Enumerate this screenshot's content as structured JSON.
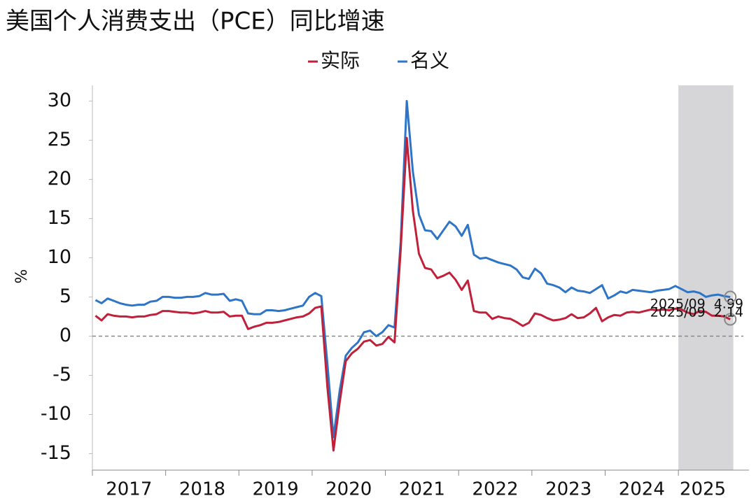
{
  "chart_data": {
    "type": "line",
    "title": "美国个人消费支出（PCE）同比增速",
    "y_label": "%",
    "categories": [
      null,
      null,
      null,
      null,
      null,
      null,
      "2017",
      null,
      null,
      null,
      null,
      null,
      null,
      null,
      null,
      null,
      null,
      null,
      "2018",
      null,
      null,
      null,
      null,
      null,
      null,
      null,
      null,
      null,
      null,
      null,
      "2019",
      null,
      null,
      null,
      null,
      null,
      null,
      null,
      null,
      null,
      null,
      null,
      "2020",
      null,
      null,
      null,
      null,
      null,
      null,
      null,
      null,
      null,
      null,
      null,
      "2021",
      null,
      null,
      null,
      null,
      null,
      null,
      null,
      null,
      null,
      null,
      null,
      "2022",
      null,
      null,
      null,
      null,
      null,
      null,
      null,
      null,
      null,
      null,
      null,
      "2023",
      null,
      null,
      null,
      null,
      null,
      null,
      null,
      null,
      null,
      null,
      null,
      "2024",
      null,
      null,
      null,
      null,
      null,
      null,
      null,
      null,
      null,
      "2025",
      null,
      null,
      null,
      null
    ],
    "series": [
      {
        "name": "实际",
        "color": "#c0203a",
        "values": [
          2.6,
          2.0,
          2.8,
          2.6,
          2.5,
          2.5,
          2.4,
          2.5,
          2.5,
          2.7,
          2.8,
          3.2,
          3.2,
          3.1,
          3.0,
          3.0,
          2.9,
          3.0,
          3.2,
          3.0,
          3.0,
          3.1,
          2.5,
          2.6,
          2.6,
          0.9,
          1.2,
          1.4,
          1.7,
          1.7,
          1.8,
          2.0,
          2.2,
          2.4,
          2.5,
          2.9,
          3.6,
          3.8,
          -6.5,
          -14.6,
          -8.5,
          -3.2,
          -2.2,
          -1.6,
          -0.7,
          -0.5,
          -1.2,
          -1.0,
          -0.1,
          -0.8,
          11.0,
          25.3,
          16.0,
          10.5,
          8.7,
          8.5,
          7.4,
          7.7,
          8.1,
          7.2,
          5.9,
          7.1,
          3.2,
          3.0,
          3.0,
          2.2,
          2.5,
          2.3,
          2.2,
          1.8,
          1.3,
          1.7,
          2.9,
          2.7,
          2.3,
          2.0,
          2.1,
          2.3,
          2.8,
          2.3,
          2.4,
          2.9,
          3.6,
          1.9,
          2.4,
          2.7,
          2.6,
          3.0,
          3.1,
          3.0,
          3.2,
          3.4,
          3.3,
          3.4,
          3.3,
          3.5,
          3.4,
          3.0,
          2.8,
          3.2,
          3.1,
          2.6,
          2.6,
          2.5,
          2.14
        ]
      },
      {
        "name": "名义",
        "color": "#2e74c7",
        "values": [
          4.6,
          4.2,
          4.8,
          4.5,
          4.2,
          4.0,
          3.9,
          4.0,
          4.0,
          4.4,
          4.5,
          5.0,
          5.0,
          4.9,
          4.9,
          5.0,
          5.0,
          5.1,
          5.5,
          5.3,
          5.3,
          5.4,
          4.5,
          4.7,
          4.5,
          2.9,
          2.8,
          2.8,
          3.3,
          3.3,
          3.2,
          3.3,
          3.5,
          3.7,
          3.9,
          5.0,
          5.5,
          5.1,
          -3.5,
          -12.9,
          -7.0,
          -2.5,
          -1.5,
          -0.8,
          0.5,
          0.7,
          0.0,
          0.5,
          1.4,
          1.1,
          12.0,
          30.0,
          21.0,
          15.5,
          13.5,
          13.4,
          12.4,
          13.5,
          14.6,
          14.0,
          12.8,
          14.2,
          10.4,
          9.9,
          10.0,
          9.7,
          9.4,
          9.2,
          9.0,
          8.5,
          7.5,
          7.3,
          8.6,
          8.0,
          6.7,
          6.5,
          6.2,
          5.6,
          6.2,
          5.8,
          5.7,
          5.5,
          6.0,
          6.5,
          4.8,
          5.2,
          5.7,
          5.5,
          5.9,
          5.8,
          5.7,
          5.6,
          5.8,
          5.9,
          6.0,
          6.4,
          6.0,
          5.6,
          5.7,
          5.5,
          5.0,
          5.2,
          5.3,
          5.1,
          4.99
        ]
      }
    ],
    "annotations": [
      {
        "date": "2025/09",
        "value": 4.99
      },
      {
        "date": "2025/09",
        "value": 2.14
      }
    ],
    "ylim": [
      -17.1,
      32
    ],
    "yticks": [
      -15,
      -10,
      -5,
      0,
      5,
      10,
      15,
      20,
      25,
      30
    ],
    "zero_line": true
  }
}
